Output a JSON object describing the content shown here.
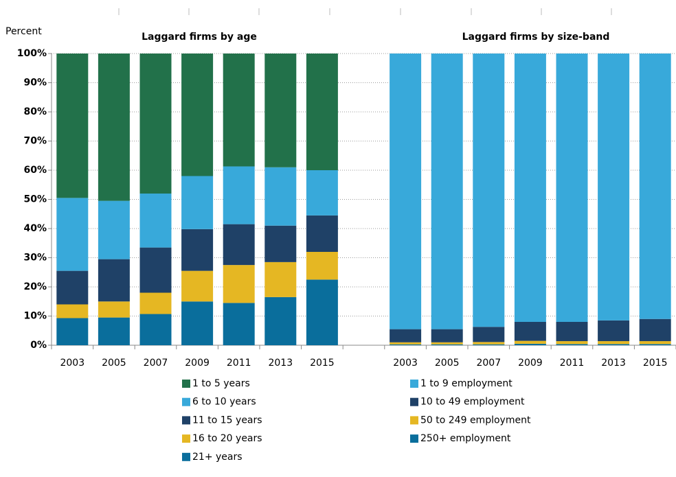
{
  "chart_data": [
    {
      "type": "stacked_bar",
      "title": "Laggard firms by age",
      "ylabel": "Percent",
      "categories": [
        "2003",
        "2005",
        "2007",
        "2009",
        "2011",
        "2013",
        "2015"
      ],
      "ylim": [
        0,
        100
      ],
      "yticks": [
        {
          "value": 0,
          "label": "0%"
        },
        {
          "value": 10,
          "label": "10%"
        },
        {
          "value": 20,
          "label": "20%"
        },
        {
          "value": 30,
          "label": "30%"
        },
        {
          "value": 40,
          "label": "40%"
        },
        {
          "value": 50,
          "label": "50%"
        },
        {
          "value": 60,
          "label": "60%"
        },
        {
          "value": 70,
          "label": "70%"
        },
        {
          "value": 80,
          "label": "80%"
        },
        {
          "value": 90,
          "label": "90%"
        },
        {
          "value": 100,
          "label": "100%"
        }
      ],
      "grid": true,
      "series": [
        {
          "name": "1 to 5 years",
          "color": "#22714a",
          "values": [
            49.5,
            50.5,
            48,
            42,
            38.7,
            39,
            40
          ]
        },
        {
          "name": "6 to 10 years",
          "color": "#38a9da",
          "values": [
            25,
            20,
            18.5,
            18.2,
            19.8,
            20,
            15.5
          ]
        },
        {
          "name": "11 to 15 years",
          "color": "#1f4167",
          "values": [
            11.5,
            14.5,
            15.5,
            14.3,
            14,
            12.5,
            12.5
          ]
        },
        {
          "name": "16 to 20 years",
          "color": "#e5b723",
          "values": [
            4.7,
            5.5,
            7.3,
            10.5,
            13,
            12,
            9.5
          ]
        },
        {
          "name": "21+ years",
          "color": "#0a6e9c",
          "values": [
            9.3,
            9.5,
            10.7,
            15,
            14.5,
            16.5,
            22.5
          ]
        }
      ]
    },
    {
      "type": "stacked_bar",
      "title": "Laggard firms by size-band",
      "categories": [
        "2003",
        "2005",
        "2007",
        "2009",
        "2011",
        "2013",
        "2015"
      ],
      "ylim": [
        0,
        100
      ],
      "series": [
        {
          "name": "1 to 9 employment",
          "color": "#38a9da",
          "values": [
            94.5,
            94.5,
            93.7,
            92,
            92,
            91.5,
            91
          ]
        },
        {
          "name": "10 to 49 employment",
          "color": "#1f4167",
          "values": [
            4.5,
            4.5,
            5.2,
            6.5,
            6.6,
            7.1,
            7.6
          ]
        },
        {
          "name": "50 to 249 employment",
          "color": "#e5b723",
          "values": [
            0.7,
            0.7,
            0.8,
            1.0,
            1.0,
            1.0,
            1.0
          ]
        },
        {
          "name": "250+ employment",
          "color": "#0a6e9c",
          "values": [
            0.3,
            0.3,
            0.3,
            0.5,
            0.4,
            0.4,
            0.4
          ]
        }
      ]
    }
  ]
}
